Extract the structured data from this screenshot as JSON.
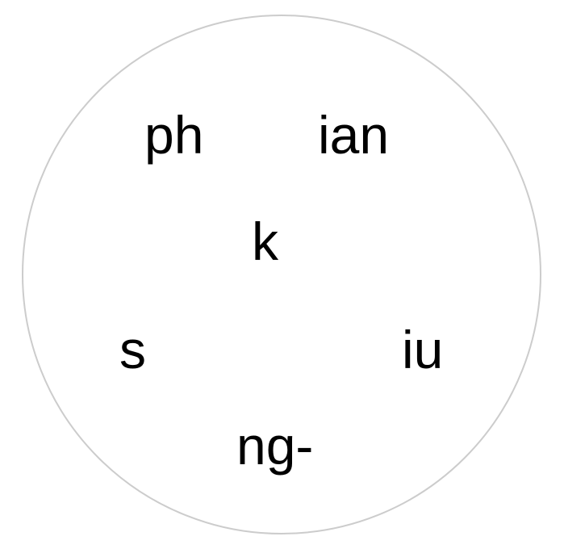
{
  "pieces": {
    "ph": "ph",
    "ian": "ian",
    "k": "k",
    "s": "s",
    "iu": "iu",
    "ng": "ng-"
  },
  "colors": {
    "circle_border": "#cccccc",
    "text": "#000000",
    "background": "#ffffff"
  }
}
